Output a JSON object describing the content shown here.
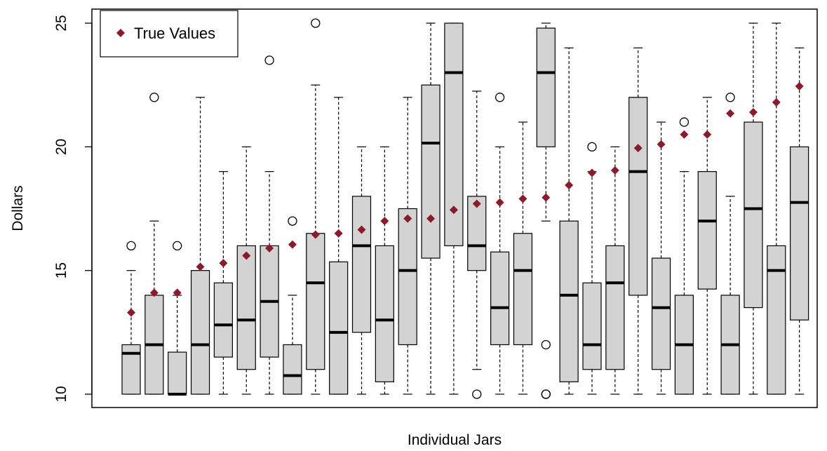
{
  "chart_data": {
    "type": "boxplot",
    "xlabel": "Individual Jars",
    "ylabel": "Dollars",
    "ylim": [
      10,
      25
    ],
    "y_ticks": [
      10,
      15,
      20,
      25
    ],
    "legend": {
      "label": "True Values",
      "position": "top-left",
      "color": "#8b1a2b"
    },
    "colors": {
      "box_fill": "#d3d3d3",
      "true_value": "#8b1a2b"
    },
    "boxes": [
      {
        "whisker_low": 10,
        "q1": 10,
        "median": 11.65,
        "q3": 12,
        "whisker_high": 15,
        "outliers": [
          16
        ],
        "true_value": 13.3
      },
      {
        "whisker_low": 10,
        "q1": 10,
        "median": 12,
        "q3": 14,
        "whisker_high": 17,
        "outliers": [
          22
        ],
        "true_value": 14.1
      },
      {
        "whisker_low": 10,
        "q1": 10,
        "median": 10,
        "q3": 11.7,
        "whisker_high": 14,
        "outliers": [
          16
        ],
        "true_value": 14.1
      },
      {
        "whisker_low": 10,
        "q1": 10,
        "median": 12,
        "q3": 15,
        "whisker_high": 22,
        "outliers": [],
        "true_value": 15.15
      },
      {
        "whisker_low": 10,
        "q1": 11.5,
        "median": 12.8,
        "q3": 14.5,
        "whisker_high": 19,
        "outliers": [],
        "true_value": 15.3
      },
      {
        "whisker_low": 10,
        "q1": 11,
        "median": 13,
        "q3": 16,
        "whisker_high": 20,
        "outliers": [],
        "true_value": 15.6
      },
      {
        "whisker_low": 10,
        "q1": 11.5,
        "median": 13.75,
        "q3": 16,
        "whisker_high": 19,
        "outliers": [
          23.5
        ],
        "true_value": 15.9
      },
      {
        "whisker_low": 10,
        "q1": 10,
        "median": 10.75,
        "q3": 12,
        "whisker_high": 14,
        "outliers": [
          17
        ],
        "true_value": 16.05
      },
      {
        "whisker_low": 10,
        "q1": 11,
        "median": 14.5,
        "q3": 16.5,
        "whisker_high": 22.5,
        "outliers": [
          25
        ],
        "true_value": 16.45
      },
      {
        "whisker_low": 10,
        "q1": 10,
        "median": 12.5,
        "q3": 15.35,
        "whisker_high": 22,
        "outliers": [],
        "true_value": 16.5
      },
      {
        "whisker_low": 10,
        "q1": 12.5,
        "median": 16,
        "q3": 18,
        "whisker_high": 20,
        "outliers": [],
        "true_value": 16.65
      },
      {
        "whisker_low": 10,
        "q1": 10.5,
        "median": 13,
        "q3": 16,
        "whisker_high": 20,
        "outliers": [],
        "true_value": 17
      },
      {
        "whisker_low": 10,
        "q1": 12,
        "median": 15,
        "q3": 17.5,
        "whisker_high": 22,
        "outliers": [],
        "true_value": 17.1
      },
      {
        "whisker_low": 10,
        "q1": 15.5,
        "median": 20.15,
        "q3": 22.5,
        "whisker_high": 25,
        "outliers": [],
        "true_value": 17.1
      },
      {
        "whisker_low": 10,
        "q1": 16,
        "median": 23,
        "q3": 25,
        "whisker_high": 25,
        "outliers": [],
        "true_value": 17.45
      },
      {
        "whisker_low": 11,
        "q1": 15,
        "median": 16,
        "q3": 18,
        "whisker_high": 22.25,
        "outliers": [
          10
        ],
        "true_value": 17.7
      },
      {
        "whisker_low": 10,
        "q1": 12,
        "median": 13.5,
        "q3": 15.75,
        "whisker_high": 20,
        "outliers": [
          22
        ],
        "true_value": 17.75
      },
      {
        "whisker_low": 10,
        "q1": 12,
        "median": 15,
        "q3": 16.5,
        "whisker_high": 21,
        "outliers": [],
        "true_value": 17.9
      },
      {
        "whisker_low": 17,
        "q1": 20,
        "median": 23,
        "q3": 24.8,
        "whisker_high": 25,
        "outliers": [
          12,
          10,
          10
        ],
        "true_value": 17.95
      },
      {
        "whisker_low": 10,
        "q1": 10.5,
        "median": 14,
        "q3": 17,
        "whisker_high": 24,
        "outliers": [],
        "true_value": 18.45
      },
      {
        "whisker_low": 10,
        "q1": 11,
        "median": 12,
        "q3": 14.5,
        "whisker_high": 19,
        "outliers": [
          20
        ],
        "true_value": 18.95
      },
      {
        "whisker_low": 10,
        "q1": 11,
        "median": 14.5,
        "q3": 16,
        "whisker_high": 20,
        "outliers": [],
        "true_value": 19.05
      },
      {
        "whisker_low": 10,
        "q1": 14,
        "median": 19,
        "q3": 22,
        "whisker_high": 24,
        "outliers": [],
        "true_value": 19.95
      },
      {
        "whisker_low": 10,
        "q1": 11,
        "median": 13.5,
        "q3": 15.5,
        "whisker_high": 21,
        "outliers": [],
        "true_value": 20.1
      },
      {
        "whisker_low": 10,
        "q1": 10,
        "median": 12,
        "q3": 14,
        "whisker_high": 19,
        "outliers": [
          21
        ],
        "true_value": 20.5
      },
      {
        "whisker_low": 10,
        "q1": 14.25,
        "median": 17,
        "q3": 19,
        "whisker_high": 22,
        "outliers": [],
        "true_value": 20.5
      },
      {
        "whisker_low": 10,
        "q1": 10,
        "median": 12,
        "q3": 14,
        "whisker_high": 18,
        "outliers": [
          22
        ],
        "true_value": 21.35
      },
      {
        "whisker_low": 10,
        "q1": 13.5,
        "median": 17.5,
        "q3": 21,
        "whisker_high": 25,
        "outliers": [],
        "true_value": 21.4
      },
      {
        "whisker_low": 10,
        "q1": 10,
        "median": 15,
        "q3": 16,
        "whisker_high": 25,
        "outliers": [],
        "true_value": 21.8
      },
      {
        "whisker_low": 10,
        "q1": 13,
        "median": 17.75,
        "q3": 20,
        "whisker_high": 24,
        "outliers": [],
        "true_value": 22.45
      }
    ]
  }
}
